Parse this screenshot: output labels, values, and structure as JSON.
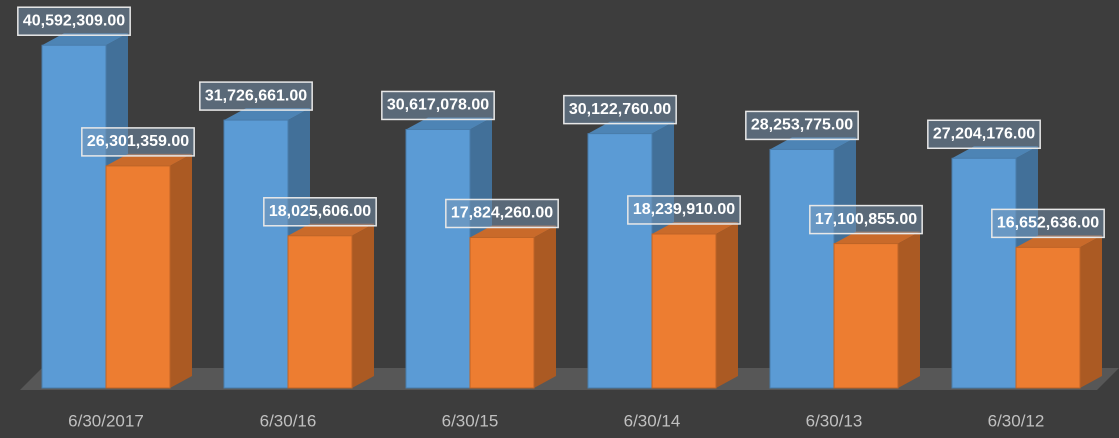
{
  "chart_data": {
    "type": "bar3d",
    "categories": [
      "6/30/2017",
      "6/30/16",
      "6/30/15",
      "6/30/14",
      "6/30/13",
      "6/30/12"
    ],
    "series": [
      {
        "color": "#5b9bd5",
        "values": [
          40592309,
          31726661,
          30617078,
          30122760,
          28253775,
          27204176
        ],
        "value_labels": [
          "40,592,309.00",
          "31,726,661.00",
          "30,617,078.00",
          "30,122,760.00",
          "28,253,775.00",
          "27,204,176.00"
        ]
      },
      {
        "color": "#ed7d31",
        "values": [
          26301359,
          18025606,
          17824260,
          18239910,
          17100855,
          16652636
        ],
        "value_labels": [
          "26,301,359.00",
          "18,025,606.00",
          "17,824,260.00",
          "18,239,910.00",
          "17,100,855.00",
          "16,652,636.00"
        ]
      }
    ],
    "ylim": [
      0,
      45000000
    ]
  }
}
